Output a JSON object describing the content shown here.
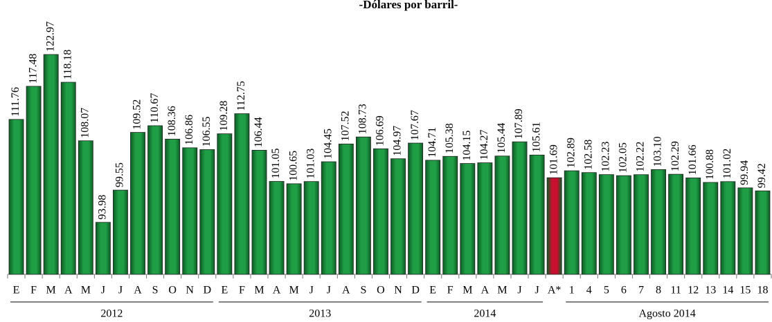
{
  "chart_data": {
    "type": "bar",
    "title": "-Dólares por barril-",
    "ylim": [
      85,
      130
    ],
    "groups": [
      {
        "name": "2012",
        "color": "#1f9e45",
        "categories": [
          "E",
          "F",
          "M",
          "A",
          "M",
          "J",
          "J",
          "A",
          "S",
          "O",
          "N",
          "D"
        ],
        "values": [
          111.76,
          117.48,
          122.97,
          118.18,
          108.07,
          93.98,
          99.55,
          109.52,
          110.67,
          108.36,
          106.86,
          106.55
        ]
      },
      {
        "name": "2013",
        "color": "#1f9e45",
        "categories": [
          "E",
          "F",
          "M",
          "A",
          "M",
          "J",
          "J",
          "A",
          "S",
          "O",
          "N",
          "D"
        ],
        "values": [
          109.28,
          112.75,
          106.44,
          101.05,
          100.65,
          101.03,
          104.45,
          107.52,
          108.73,
          106.69,
          104.97,
          107.67
        ]
      },
      {
        "name": "2014",
        "color": "#1f9e45",
        "categories": [
          "E",
          "F",
          "M",
          "A",
          "M",
          "J",
          "J"
        ],
        "values": [
          104.71,
          105.38,
          104.15,
          104.27,
          105.44,
          107.89,
          105.61
        ]
      },
      {
        "color": "#c8102e",
        "categories": [
          "A*"
        ],
        "values": [
          101.69
        ]
      },
      {
        "name": "Agosto 2014",
        "color": "#1f9e45",
        "categories": [
          "1",
          "4",
          "5",
          "6",
          "7",
          "8",
          "11",
          "12",
          "13",
          "14",
          "15",
          "18"
        ],
        "values": [
          102.89,
          102.58,
          102.23,
          102.05,
          102.22,
          103.1,
          102.29,
          101.66,
          100.88,
          101.02,
          99.94,
          99.42
        ],
        "value_labels": [
          "102.89",
          "102.58",
          "102.23",
          "102.05",
          "102.22",
          "103.10",
          "102.29",
          "101.66",
          "100.88",
          "101.02",
          "99.94",
          "99.42"
        ]
      }
    ]
  }
}
